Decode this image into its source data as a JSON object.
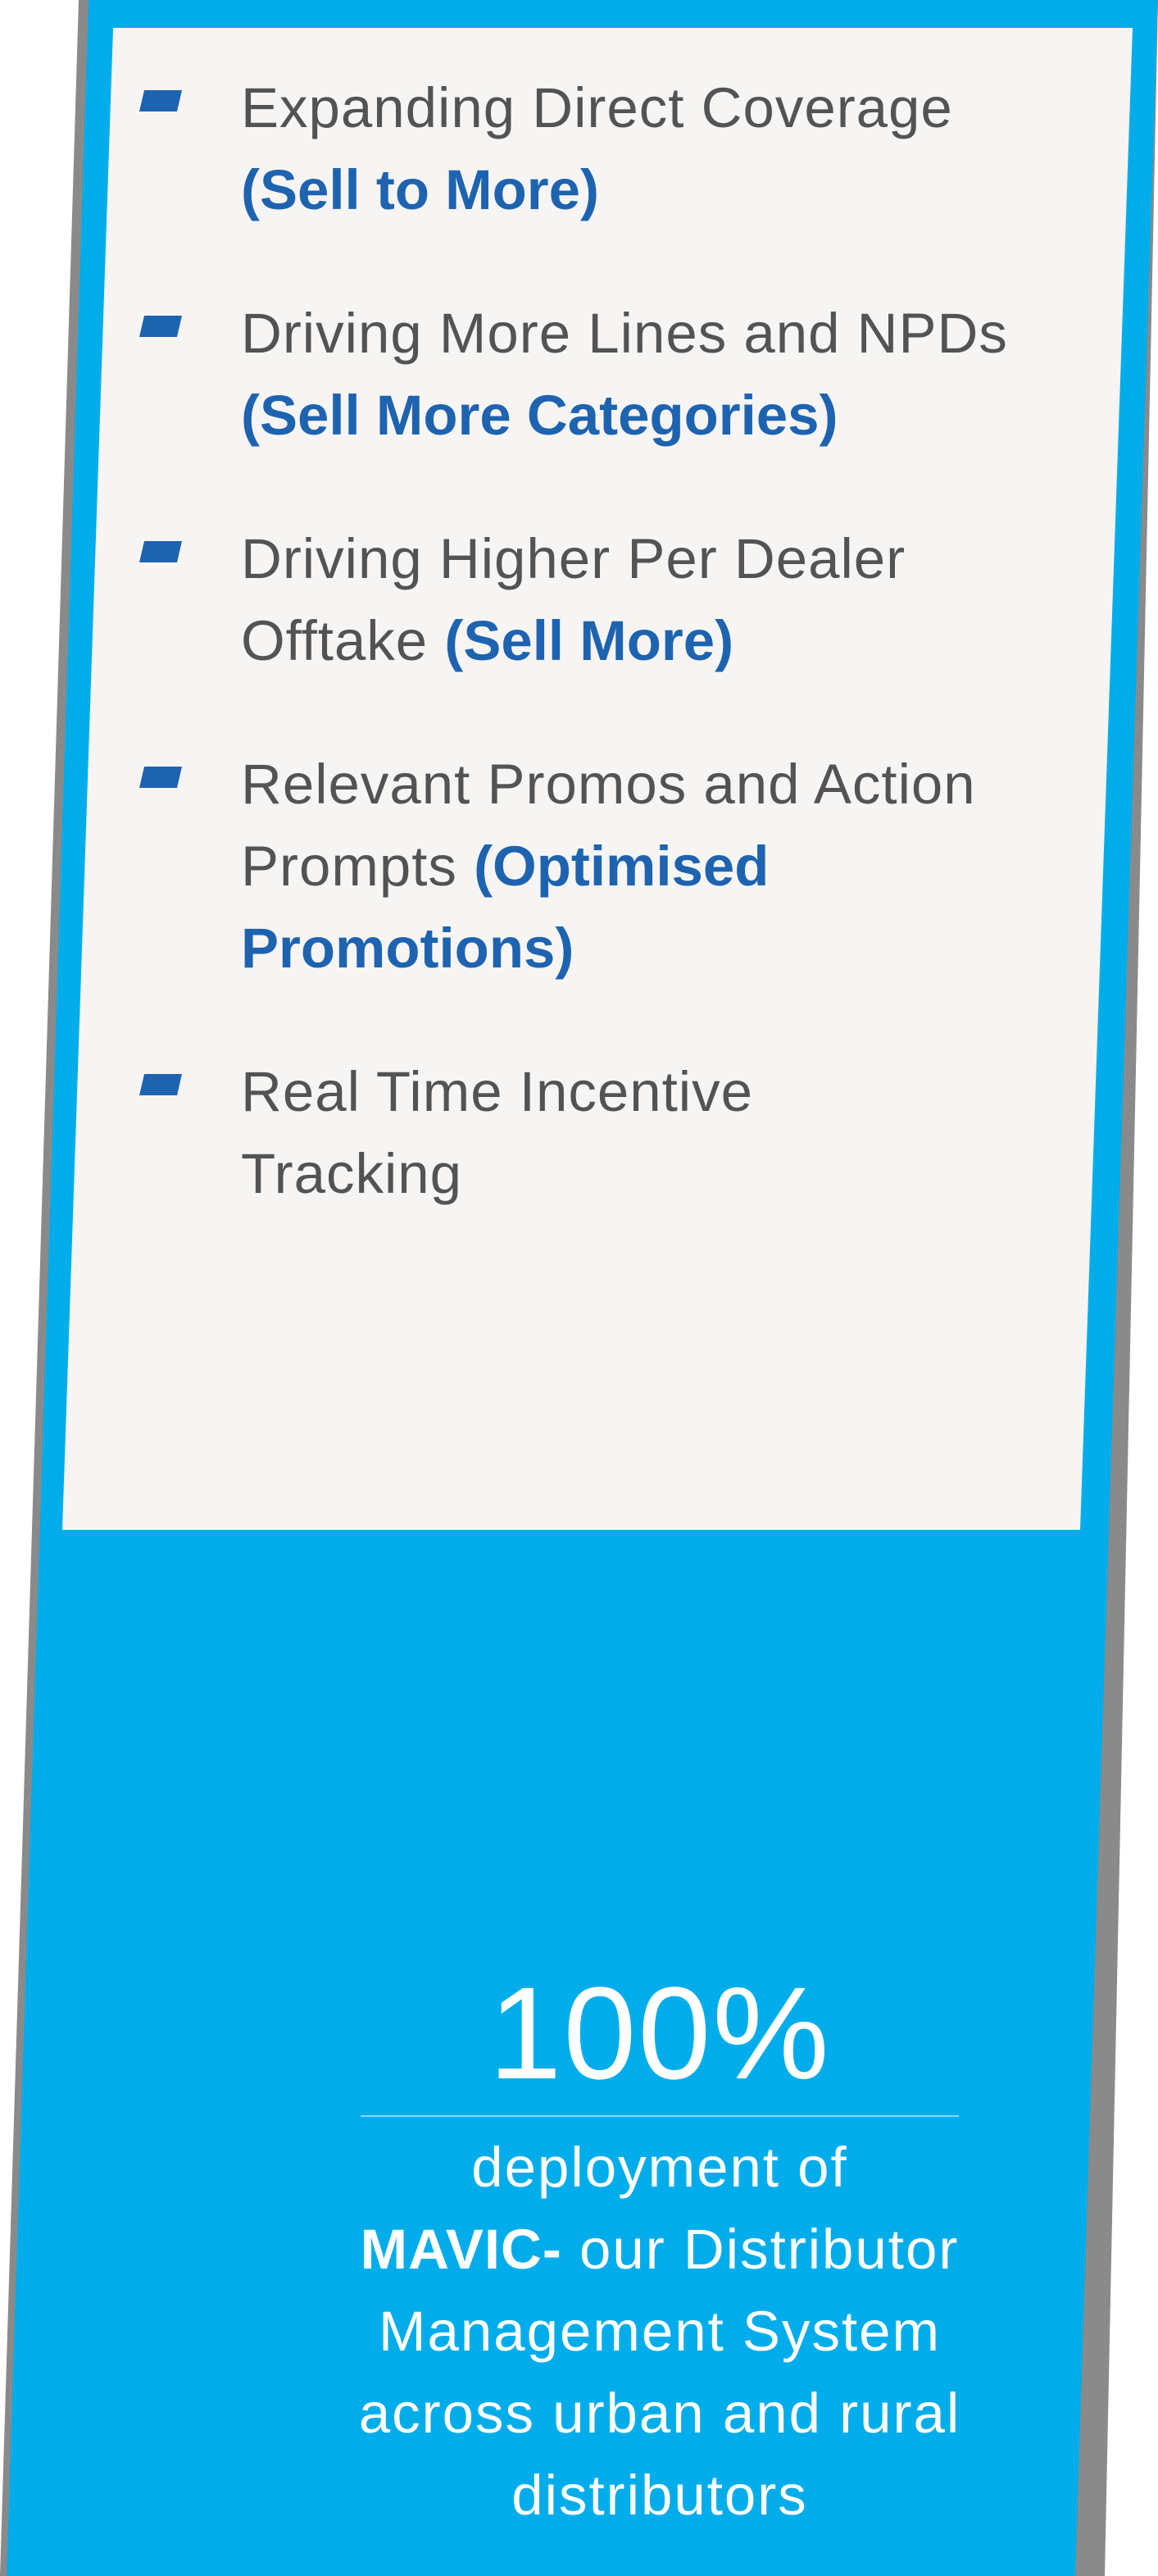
{
  "colors": {
    "panel_blue": "#00adea",
    "card_bg": "#f6f5f3",
    "bullet_blue": "#1e63b0",
    "text_grey": "#535353"
  },
  "items": [
    {
      "text": "Expanding Direct Coverage",
      "highlight": "(Sell to More)"
    },
    {
      "text": "Driving More Lines and NPDs",
      "highlight": "(Sell More Categories)"
    },
    {
      "text": "Driving Higher Per Dealer Offtake",
      "highlight": "(Sell More)"
    },
    {
      "text": "Relevant Promos and Action Prompts",
      "highlight": "(Optimised Promotions)"
    },
    {
      "text": "Real Time Incentive Tracking",
      "highlight": ""
    }
  ],
  "stat": {
    "value": "100%",
    "line1": "deployment of",
    "brand": "MAVIC-",
    "line2_rest": "our Distributor",
    "line3": "Management System",
    "line4": "across urban and rural",
    "line5": "distributors"
  }
}
